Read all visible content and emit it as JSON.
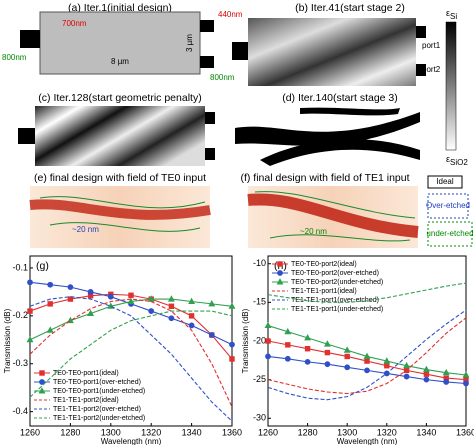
{
  "panels": {
    "a": {
      "title": "(a) Iter.1(initial design)",
      "dim_top": "700nm",
      "dim_right": "440nm",
      "dim_left": "800nm",
      "dim_right_low": "800nm",
      "width": "8 µm",
      "height": "3 µm"
    },
    "b": {
      "title": "(b) Iter.41(start stage 2)",
      "port1": "port1",
      "port2": "port2"
    },
    "c": {
      "title": "(c) Iter.128(start geometric penalty)"
    },
    "d": {
      "title": "(d) Iter.140(start stage 3)"
    },
    "e": {
      "title": "(e) final design with field of TE0 input",
      "gap": "~20 nm"
    },
    "f": {
      "title": "(f) final design with field of TE1 input",
      "gap": "~20 nm"
    },
    "colorbar": {
      "top": {
        "symbol": "ε",
        "sub": "Si"
      },
      "bottom": {
        "symbol": "ε",
        "sub": "SiO2"
      }
    },
    "legend": {
      "ideal": "Ideal",
      "over": "Over-etched",
      "under": "under-etched"
    }
  },
  "chart_data": [
    {
      "type": "line",
      "label": "(g)",
      "xlabel": "Wavelength (nm)",
      "ylabel": "Transmission (dB)",
      "x": [
        1260,
        1270,
        1280,
        1290,
        1300,
        1310,
        1320,
        1330,
        1340,
        1350,
        1360
      ],
      "xlim": [
        1260,
        1360
      ],
      "xticks": [
        1260,
        1280,
        1300,
        1320,
        1340,
        1360
      ],
      "ylim": [
        -0.43,
        -0.075
      ],
      "yticks": [
        -0.4,
        -0.3,
        -0.2,
        -0.1
      ],
      "legend": "lower left",
      "series": [
        {
          "name": "TE0-TE0-port1(ideal)",
          "color": "#e03030",
          "dash": false,
          "marker": "square",
          "values": [
            -0.19,
            -0.175,
            -0.165,
            -0.158,
            -0.155,
            -0.157,
            -0.165,
            -0.18,
            -0.2,
            -0.24,
            -0.29
          ]
        },
        {
          "name": "TE0-TE0-port1(over-etched)",
          "color": "#3050c8",
          "dash": false,
          "marker": "circle",
          "values": [
            -0.13,
            -0.135,
            -0.14,
            -0.15,
            -0.16,
            -0.175,
            -0.19,
            -0.205,
            -0.22,
            -0.24,
            -0.26
          ]
        },
        {
          "name": "TE0-TE0-port1(under-etched)",
          "color": "#30a050",
          "dash": false,
          "marker": "triangle",
          "values": [
            -0.25,
            -0.23,
            -0.21,
            -0.195,
            -0.18,
            -0.17,
            -0.165,
            -0.165,
            -0.17,
            -0.175,
            -0.18
          ]
        },
        {
          "name": "TE1-TE1-port2(ideal)",
          "color": "#e03030",
          "dash": true,
          "marker": "square",
          "values": [
            -0.28,
            -0.24,
            -0.21,
            -0.185,
            -0.17,
            -0.165,
            -0.17,
            -0.19,
            -0.23,
            -0.3,
            -0.39
          ]
        },
        {
          "name": "TE1-TE1-port2(over-etched)",
          "color": "#3050c8",
          "dash": true,
          "marker": "circle",
          "values": [
            -0.18,
            -0.165,
            -0.16,
            -0.165,
            -0.18,
            -0.2,
            -0.24,
            -0.28,
            -0.33,
            -0.38,
            -0.42
          ]
        },
        {
          "name": "TE1-TE1-port2(under-etched)",
          "color": "#30a050",
          "dash": true,
          "marker": "triangle",
          "values": [
            -0.37,
            -0.33,
            -0.29,
            -0.26,
            -0.23,
            -0.21,
            -0.2,
            -0.19,
            -0.19,
            -0.19,
            -0.2
          ]
        }
      ]
    },
    {
      "type": "line",
      "label": "(h)",
      "xlabel": "Wavelength (nm)",
      "ylabel": "Transmission (dB)",
      "x": [
        1260,
        1270,
        1280,
        1290,
        1300,
        1310,
        1320,
        1330,
        1340,
        1350,
        1360
      ],
      "xlim": [
        1260,
        1360
      ],
      "xticks": [
        1260,
        1280,
        1300,
        1320,
        1340,
        1360
      ],
      "ylim": [
        -31,
        -9
      ],
      "yticks": [
        -30,
        -25,
        -20,
        -15,
        -10
      ],
      "legend": "upper left",
      "series": [
        {
          "name": "TE0-TE0-port2(ideal)",
          "color": "#e03030",
          "dash": false,
          "marker": "square",
          "values": [
            -20,
            -20.5,
            -21,
            -21.5,
            -22,
            -22.6,
            -23.2,
            -23.8,
            -24.3,
            -24.8,
            -25
          ]
        },
        {
          "name": "TE0-TE0-port2(over-etched)",
          "color": "#3050c8",
          "dash": false,
          "marker": "circle",
          "values": [
            -22,
            -22.3,
            -22.7,
            -23,
            -23.4,
            -23.8,
            -24.2,
            -24.6,
            -25,
            -25.3,
            -25.5
          ]
        },
        {
          "name": "TE0-TE0-port2(under-etched)",
          "color": "#30a050",
          "dash": false,
          "marker": "triangle",
          "values": [
            -18,
            -18.8,
            -19.6,
            -20.4,
            -21.2,
            -22,
            -22.6,
            -23.2,
            -23.7,
            -24.1,
            -24.4
          ]
        },
        {
          "name": "TE1-TE1-port1(ideal)",
          "color": "#e03030",
          "dash": true,
          "marker": "square",
          "values": [
            -25,
            -25.6,
            -26.2,
            -26.6,
            -26.8,
            -26.5,
            -25.5,
            -23.8,
            -21.5,
            -19,
            -17
          ]
        },
        {
          "name": "TE1-TE1-port1(over-etched)",
          "color": "#3050c8",
          "dash": true,
          "marker": "circle",
          "values": [
            -26,
            -26.8,
            -27.4,
            -27.6,
            -27.2,
            -26,
            -24.2,
            -22,
            -19.8,
            -17.8,
            -16
          ]
        },
        {
          "name": "TE1-TE1-port1(under-etched)",
          "color": "#30a050",
          "dash": true,
          "marker": "triangle",
          "values": [
            -14,
            -14.4,
            -14.8,
            -15,
            -15,
            -14.8,
            -14.4,
            -13.9,
            -13.4,
            -12.9,
            -12.5
          ]
        }
      ]
    }
  ]
}
